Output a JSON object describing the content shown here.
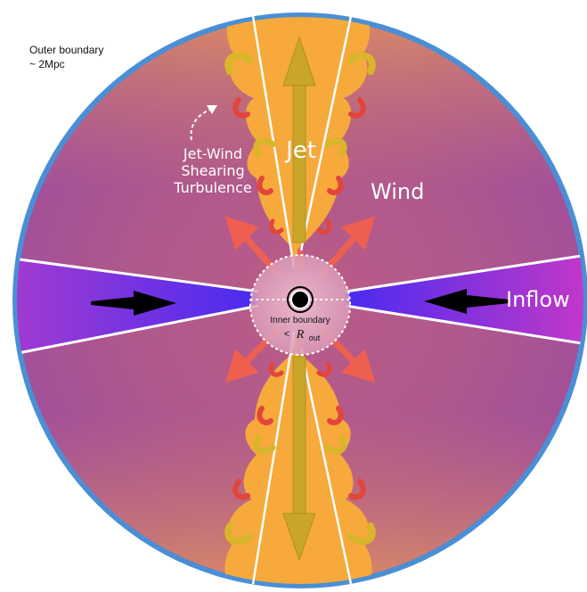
{
  "labels": {
    "outer_boundary_line1": "Outer boundary",
    "outer_boundary_line2": "~ 2Mpc",
    "shearing_line1": "Jet-Wind",
    "shearing_line2": "Shearing",
    "shearing_line3": "Turbulence",
    "jet": "Jet",
    "wind": "Wind",
    "inflow": "Inflow",
    "inner_boundary": "Inner boundary",
    "inner_lt": "<",
    "inner_r": "R",
    "inner_sub": "out"
  },
  "colors": {
    "outer_ring": "#4a8fd6",
    "sphere_top": "#e08a5a",
    "sphere_mid": "#a44f98",
    "jet_fill": "#f7a93c",
    "jet_axis_arrow": "#c9a62a",
    "wind_arrow": "#ef5f50",
    "inflow_wedge": "#6a2bdc",
    "inflow_arrow": "#000000",
    "curl_yellow": "#d9b52a",
    "curl_red": "#e2453a"
  }
}
